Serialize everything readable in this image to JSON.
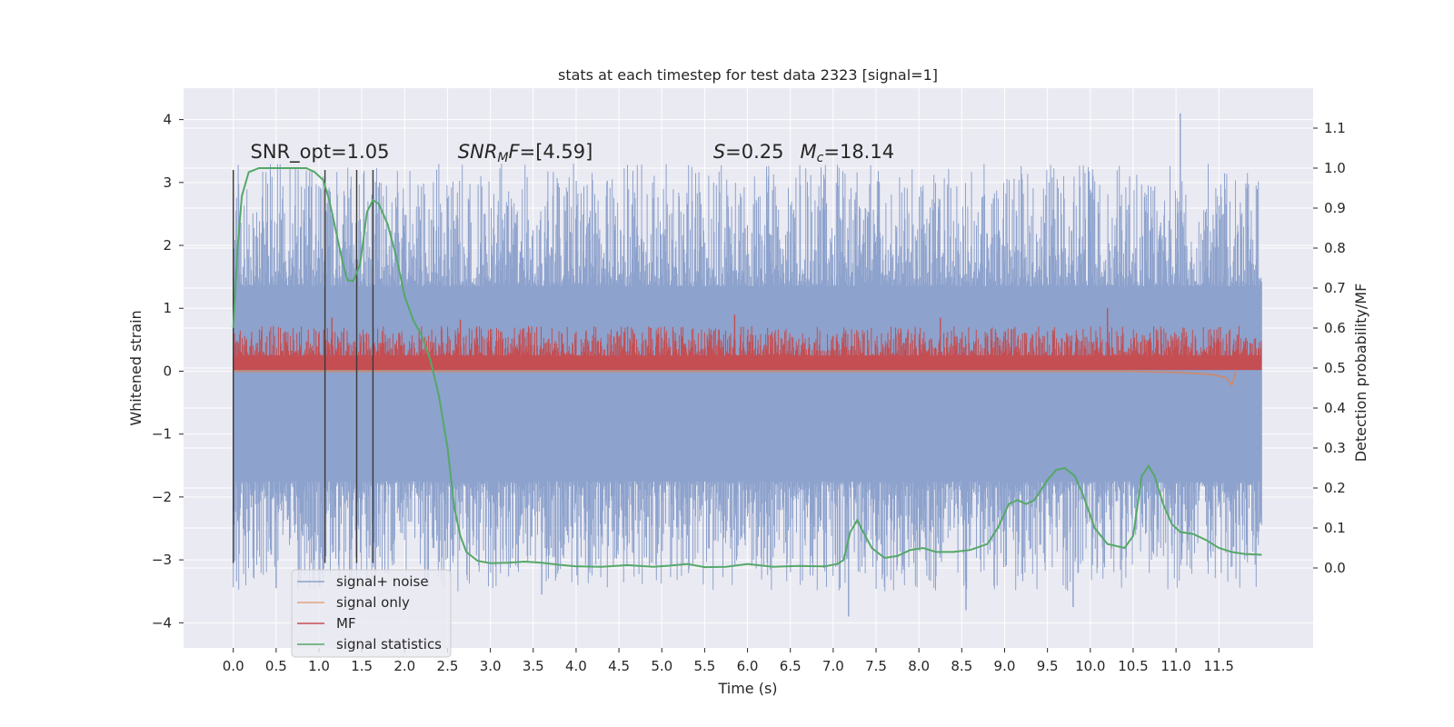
{
  "chart_data": {
    "type": "line",
    "title": "stats at each timestep for test data 2323 [signal=1]",
    "xlabel": "Time (s)",
    "ylabel": "Whitened strain",
    "ylabel_right": "Detection probability/MF",
    "xlim": [
      -0.58,
      12.6
    ],
    "ylim": [
      -4.4,
      4.5
    ],
    "ylim_right": [
      -0.2,
      1.2
    ],
    "x_ticks": [
      "0.0",
      "0.5",
      "1.0",
      "1.5",
      "2.0",
      "2.5",
      "3.0",
      "3.5",
      "4.0",
      "4.5",
      "5.0",
      "5.5",
      "6.0",
      "6.5",
      "7.0",
      "7.5",
      "8.0",
      "8.5",
      "9.0",
      "9.5",
      "10.0",
      "10.5",
      "11.0",
      "11.5"
    ],
    "y_ticks": [
      "4",
      "3",
      "2",
      "1",
      "0",
      "−1",
      "−2",
      "−3",
      "−4"
    ],
    "y_tick_values": [
      4,
      3,
      2,
      1,
      0,
      -1,
      -2,
      -3,
      -4
    ],
    "y_right_ticks": [
      "1.1",
      "1.0",
      "0.9",
      "0.8",
      "0.7",
      "0.6",
      "0.5",
      "0.4",
      "0.3",
      "0.2",
      "0.1",
      "0.0"
    ],
    "y_right_tick_values": [
      1.1,
      1.0,
      0.9,
      0.8,
      0.7,
      0.6,
      0.5,
      0.4,
      0.3,
      0.2,
      0.1,
      0.0
    ],
    "grid": true,
    "legend_position": "lower-left",
    "annotations": [
      {
        "text": "SNR_opt=1.05",
        "x": 0.2,
        "y": 3.3
      },
      {
        "text": "SNR_MF=[4.59]",
        "x": 2.62,
        "y": 3.3
      },
      {
        "text": "S=0.25   M_c=18.14",
        "x": 5.6,
        "y": 3.3
      }
    ],
    "vlines": [
      {
        "x": 0.0,
        "y0": -3.05,
        "y1": 3.2
      },
      {
        "x": 1.07,
        "y0": -3.05,
        "y1": 3.2
      },
      {
        "x": 1.44,
        "y0": -3.05,
        "y1": 3.2
      },
      {
        "x": 1.63,
        "y0": -3.05,
        "y1": 3.2
      }
    ],
    "series": [
      {
        "name": "signal+ noise",
        "color": "#8da2cc",
        "kind": "noise-band",
        "x_range": [
          0.0,
          12.0
        ],
        "core": [
          -1.75,
          1.35
        ],
        "spike_range": [
          -4.0,
          4.1
        ],
        "notable_spikes": [
          {
            "x": 11.05,
            "y": 4.1
          },
          {
            "x": 7.18,
            "y": -3.9
          },
          {
            "x": 3.6,
            "y": -3.55
          },
          {
            "x": 8.55,
            "y": -3.8
          },
          {
            "x": 9.8,
            "y": -3.75
          },
          {
            "x": 0.5,
            "y": -3.45
          }
        ]
      },
      {
        "name": "signal only",
        "color": "#dd8452",
        "kind": "chirp",
        "points": [
          [
            0,
            0
          ],
          [
            10.4,
            0
          ],
          [
            11.0,
            -0.02
          ],
          [
            11.4,
            -0.05
          ],
          [
            11.58,
            -0.1
          ],
          [
            11.65,
            -0.22
          ],
          [
            11.7,
            0.0
          ]
        ]
      },
      {
        "name": "MF",
        "color": "#c44e52",
        "kind": "mf-band",
        "x_range": [
          0.0,
          12.0
        ],
        "base": 0.02,
        "core_top": 0.5,
        "notable_peaks": [
          {
            "x": 10.2,
            "y": 1.0
          },
          {
            "x": 1.15,
            "y": 0.85
          },
          {
            "x": 2.65,
            "y": 0.82
          },
          {
            "x": 5.85,
            "y": 0.9
          },
          {
            "x": 8.25,
            "y": 0.85
          }
        ]
      },
      {
        "name": "signal statistics",
        "color": "#55a868",
        "kind": "line",
        "axis": "right",
        "points": [
          [
            0.0,
            0.6
          ],
          [
            0.05,
            0.8
          ],
          [
            0.1,
            0.93
          ],
          [
            0.18,
            0.99
          ],
          [
            0.3,
            1.0
          ],
          [
            0.5,
            1.0
          ],
          [
            0.7,
            1.0
          ],
          [
            0.85,
            1.0
          ],
          [
            0.95,
            0.99
          ],
          [
            1.05,
            0.97
          ],
          [
            1.12,
            0.92
          ],
          [
            1.2,
            0.84
          ],
          [
            1.27,
            0.77
          ],
          [
            1.33,
            0.72
          ],
          [
            1.4,
            0.718
          ],
          [
            1.48,
            0.76
          ],
          [
            1.56,
            0.89
          ],
          [
            1.63,
            0.92
          ],
          [
            1.7,
            0.91
          ],
          [
            1.8,
            0.86
          ],
          [
            1.9,
            0.78
          ],
          [
            2.0,
            0.68
          ],
          [
            2.1,
            0.62
          ],
          [
            2.2,
            0.58
          ],
          [
            2.3,
            0.52
          ],
          [
            2.4,
            0.43
          ],
          [
            2.5,
            0.3
          ],
          [
            2.58,
            0.15
          ],
          [
            2.65,
            0.08
          ],
          [
            2.72,
            0.04
          ],
          [
            2.85,
            0.018
          ],
          [
            3.0,
            0.012
          ],
          [
            3.2,
            0.013
          ],
          [
            3.4,
            0.016
          ],
          [
            3.6,
            0.013
          ],
          [
            3.8,
            0.008
          ],
          [
            4.0,
            0.004
          ],
          [
            4.3,
            0.003
          ],
          [
            4.6,
            0.007
          ],
          [
            4.9,
            0.003
          ],
          [
            5.1,
            0.006
          ],
          [
            5.3,
            0.01
          ],
          [
            5.5,
            0.002
          ],
          [
            5.75,
            0.003
          ],
          [
            6.0,
            0.01
          ],
          [
            6.3,
            0.003
          ],
          [
            6.6,
            0.005
          ],
          [
            6.9,
            0.004
          ],
          [
            7.05,
            0.01
          ],
          [
            7.12,
            0.02
          ],
          [
            7.2,
            0.09
          ],
          [
            7.28,
            0.12
          ],
          [
            7.35,
            0.09
          ],
          [
            7.45,
            0.05
          ],
          [
            7.6,
            0.025
          ],
          [
            7.75,
            0.03
          ],
          [
            7.9,
            0.045
          ],
          [
            8.05,
            0.05
          ],
          [
            8.2,
            0.04
          ],
          [
            8.4,
            0.04
          ],
          [
            8.6,
            0.045
          ],
          [
            8.8,
            0.06
          ],
          [
            8.92,
            0.1
          ],
          [
            9.05,
            0.16
          ],
          [
            9.15,
            0.17
          ],
          [
            9.25,
            0.16
          ],
          [
            9.35,
            0.17
          ],
          [
            9.5,
            0.22
          ],
          [
            9.6,
            0.245
          ],
          [
            9.7,
            0.25
          ],
          [
            9.82,
            0.23
          ],
          [
            9.92,
            0.18
          ],
          [
            10.05,
            0.1
          ],
          [
            10.2,
            0.06
          ],
          [
            10.4,
            0.05
          ],
          [
            10.5,
            0.08
          ],
          [
            10.6,
            0.23
          ],
          [
            10.68,
            0.255
          ],
          [
            10.75,
            0.23
          ],
          [
            10.85,
            0.16
          ],
          [
            10.95,
            0.11
          ],
          [
            11.05,
            0.09
          ],
          [
            11.2,
            0.085
          ],
          [
            11.35,
            0.07
          ],
          [
            11.5,
            0.05
          ],
          [
            11.65,
            0.04
          ],
          [
            11.8,
            0.035
          ],
          [
            11.9,
            0.034
          ],
          [
            12.0,
            0.033
          ]
        ]
      }
    ]
  }
}
